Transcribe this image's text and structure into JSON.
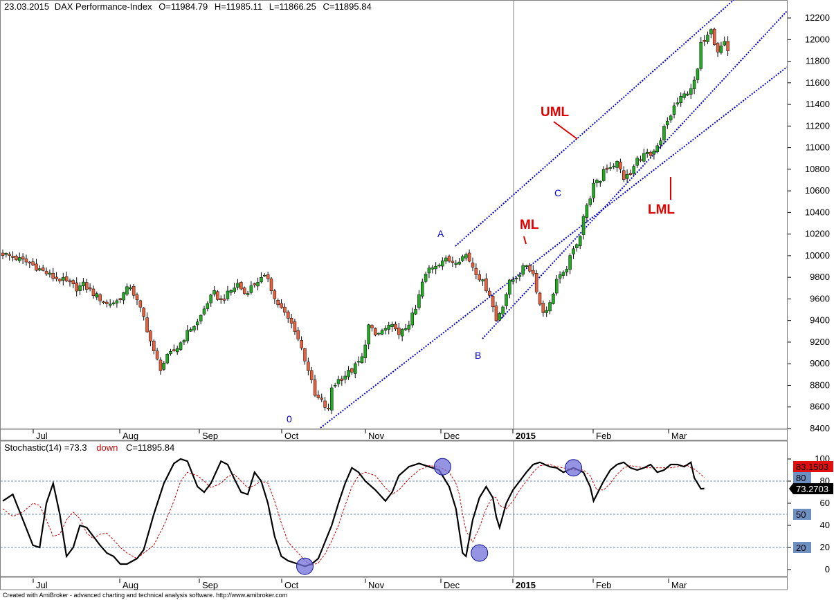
{
  "header": {
    "date": "23.03.2015",
    "instrument": "DAX Performance-Index",
    "open": "O=11984.79",
    "high": "H=11985.11",
    "low": "L=11866.25",
    "close": "C=11895.84"
  },
  "stoch_header": {
    "label": "Stochastic(14) =73.3",
    "signal": "down",
    "close": "C=11895.84"
  },
  "footer": "Created with AmiBroker - advanced charting and technical analysis software. http://www.amibroker.com",
  "colors": {
    "up_candle": "#22aa22",
    "down_candle": "#e8603c",
    "channel": "#0000cc",
    "annotation": "#e00000",
    "stoch_k": "#000000",
    "stoch_d": "#cc0000",
    "marker": "#7070d8"
  },
  "chart_data": [
    {
      "type": "candlestick",
      "title": "DAX Performance-Index",
      "ylim": [
        8400,
        12300
      ],
      "y_ticks": [
        "8400",
        "8600",
        "8800",
        "9000",
        "9200",
        "9400",
        "9600",
        "9800",
        "10000",
        "10200",
        "10400",
        "10600",
        "10800",
        "11000",
        "11200",
        "11400",
        "11600",
        "11800",
        "12000",
        "12200"
      ],
      "x_labels": [
        "Jul",
        "Aug",
        "Sep",
        "Oct",
        "Nov",
        "Dec",
        "2015",
        "Feb",
        "Mar"
      ],
      "close_path": [
        [
          0,
          10020
        ],
        [
          8,
          9930
        ],
        [
          15,
          9800
        ],
        [
          18,
          9770
        ],
        [
          22,
          9700
        ],
        [
          24,
          9730
        ],
        [
          27,
          9650
        ],
        [
          31,
          9550
        ],
        [
          34,
          9580
        ],
        [
          38,
          9720
        ],
        [
          42,
          9430
        ],
        [
          45,
          9100
        ],
        [
          47,
          8960
        ],
        [
          49,
          9060
        ],
        [
          52,
          9150
        ],
        [
          56,
          9330
        ],
        [
          58,
          9380
        ],
        [
          61,
          9570
        ],
        [
          63,
          9650
        ],
        [
          65,
          9580
        ],
        [
          70,
          9740
        ],
        [
          72,
          9650
        ],
        [
          76,
          9770
        ],
        [
          79,
          9800
        ],
        [
          81,
          9600
        ],
        [
          84,
          9460
        ],
        [
          87,
          9320
        ],
        [
          89,
          9140
        ],
        [
          91,
          8950
        ],
        [
          93,
          8700
        ],
        [
          95,
          8650
        ],
        [
          97,
          8560
        ],
        [
          98,
          8780
        ],
        [
          100,
          8850
        ],
        [
          104,
          8940
        ],
        [
          107,
          9050
        ],
        [
          109,
          9350
        ],
        [
          111,
          9260
        ],
        [
          114,
          9320
        ],
        [
          117,
          9350
        ],
        [
          118,
          9250
        ],
        [
          121,
          9380
        ],
        [
          123,
          9500
        ],
        [
          125,
          9750
        ],
        [
          127,
          9880
        ],
        [
          131,
          9960
        ],
        [
          134,
          9950
        ],
        [
          136,
          9970
        ],
        [
          138,
          10010
        ],
        [
          141,
          9850
        ],
        [
          145,
          9650
        ],
        [
          147,
          9400
        ],
        [
          149,
          9550
        ],
        [
          151,
          9750
        ],
        [
          154,
          9840
        ],
        [
          156,
          9920
        ],
        [
          158,
          9830
        ],
        [
          160,
          9550
        ],
        [
          161,
          9480
        ],
        [
          163,
          9550
        ],
        [
          165,
          9780
        ],
        [
          167,
          9820
        ],
        [
          170,
          10050
        ],
        [
          172,
          10200
        ],
        [
          173,
          10370
        ],
        [
          174,
          10450
        ],
        [
          176,
          10650
        ],
        [
          178,
          10700
        ],
        [
          179,
          10800
        ],
        [
          183,
          10860
        ],
        [
          185,
          10720
        ],
        [
          187,
          10750
        ],
        [
          189,
          10890
        ],
        [
          192,
          10950
        ],
        [
          193,
          10900
        ],
        [
          196,
          11050
        ],
        [
          197,
          11180
        ],
        [
          199,
          11300
        ],
        [
          200,
          11380
        ],
        [
          202,
          11450
        ],
        [
          204,
          11520
        ],
        [
          206,
          11600
        ],
        [
          207,
          11720
        ],
        [
          208,
          11950
        ],
        [
          211,
          12120
        ],
        [
          212,
          11980
        ],
        [
          213,
          11900
        ],
        [
          215,
          11980
        ],
        [
          216,
          11895.84
        ]
      ]
    },
    {
      "type": "line",
      "title": "Stochastic(14)",
      "ylim": [
        0,
        100
      ],
      "y_ticks": [
        "0",
        "20",
        "40",
        "60",
        "80",
        "100"
      ],
      "reference_lines": [
        20,
        50,
        80
      ],
      "series": [
        {
          "name": "Stochastic(14)",
          "values": [
            [
              0,
              62
            ],
            [
              3,
              68
            ],
            [
              6,
              45
            ],
            [
              9,
              22
            ],
            [
              11,
              20
            ],
            [
              13,
              60
            ],
            [
              15,
              78
            ],
            [
              17,
              50
            ],
            [
              19,
              12
            ],
            [
              21,
              20
            ],
            [
              23,
              40
            ],
            [
              25,
              38
            ],
            [
              27,
              30
            ],
            [
              29,
              22
            ],
            [
              31,
              15
            ],
            [
              33,
              12
            ],
            [
              35,
              5
            ],
            [
              37,
              5
            ],
            [
              40,
              10
            ],
            [
              42,
              18
            ],
            [
              45,
              50
            ],
            [
              48,
              78
            ],
            [
              51,
              96
            ],
            [
              53,
              100
            ],
            [
              55,
              98
            ],
            [
              58,
              75
            ],
            [
              60,
              70
            ],
            [
              62,
              78
            ],
            [
              65,
              98
            ],
            [
              67,
              95
            ],
            [
              69,
              82
            ],
            [
              71,
              70
            ],
            [
              73,
              68
            ],
            [
              75,
              88
            ],
            [
              77,
              80
            ],
            [
              79,
              60
            ],
            [
              81,
              30
            ],
            [
              83,
              12
            ],
            [
              85,
              8
            ],
            [
              88,
              5
            ],
            [
              90,
              3
            ],
            [
              92,
              5
            ],
            [
              94,
              10
            ],
            [
              96,
              25
            ],
            [
              98,
              40
            ],
            [
              100,
              60
            ],
            [
              102,
              78
            ],
            [
              104,
              92
            ],
            [
              106,
              88
            ],
            [
              108,
              80
            ],
            [
              111,
              72
            ],
            [
              114,
              62
            ],
            [
              116,
              70
            ],
            [
              118,
              85
            ],
            [
              121,
              93
            ],
            [
              124,
              96
            ],
            [
              127,
              93
            ],
            [
              130,
              90
            ],
            [
              133,
              75
            ],
            [
              135,
              55
            ],
            [
              136,
              35
            ],
            [
              137,
              15
            ],
            [
              138,
              12
            ],
            [
              140,
              45
            ],
            [
              142,
              65
            ],
            [
              144,
              75
            ],
            [
              146,
              65
            ],
            [
              147,
              48
            ],
            [
              148,
              38
            ],
            [
              150,
              60
            ],
            [
              152,
              72
            ],
            [
              154,
              80
            ],
            [
              156,
              88
            ],
            [
              158,
              95
            ],
            [
              160,
              97
            ],
            [
              163,
              93
            ],
            [
              165,
              92
            ],
            [
              167,
              88
            ],
            [
              170,
              92
            ],
            [
              173,
              88
            ],
            [
              175,
              75
            ],
            [
              176,
              62
            ],
            [
              177,
              68
            ],
            [
              179,
              80
            ],
            [
              181,
              90
            ],
            [
              183,
              95
            ],
            [
              185,
              97
            ],
            [
              187,
              92
            ],
            [
              189,
              90
            ],
            [
              191,
              92
            ],
            [
              193,
              95
            ],
            [
              195,
              88
            ],
            [
              197,
              90
            ],
            [
              199,
              95
            ],
            [
              201,
              95
            ],
            [
              203,
              93
            ],
            [
              204,
              95
            ],
            [
              205,
              97
            ],
            [
              206,
              83
            ],
            [
              208,
              73
            ],
            [
              209,
              73.3
            ]
          ]
        },
        {
          "name": "83.1503",
          "values": [
            [
              0,
              55
            ],
            [
              3,
              48
            ],
            [
              6,
              52
            ],
            [
              9,
              60
            ],
            [
              11,
              58
            ],
            [
              13,
              45
            ],
            [
              15,
              30
            ],
            [
              17,
              32
            ],
            [
              19,
              45
            ],
            [
              21,
              52
            ],
            [
              23,
              46
            ],
            [
              25,
              33
            ],
            [
              27,
              28
            ],
            [
              29,
              32
            ],
            [
              31,
              33
            ],
            [
              33,
              27
            ],
            [
              35,
              20
            ],
            [
              37,
              15
            ],
            [
              40,
              10
            ],
            [
              42,
              15
            ],
            [
              45,
              22
            ],
            [
              48,
              40
            ],
            [
              51,
              62
            ],
            [
              53,
              80
            ],
            [
              55,
              88
            ],
            [
              58,
              85
            ],
            [
              60,
              80
            ],
            [
              62,
              74
            ],
            [
              65,
              78
            ],
            [
              67,
              84
            ],
            [
              69,
              86
            ],
            [
              71,
              80
            ],
            [
              73,
              74
            ],
            [
              75,
              76
            ],
            [
              77,
              80
            ],
            [
              79,
              78
            ],
            [
              81,
              62
            ],
            [
              83,
              42
            ],
            [
              85,
              25
            ],
            [
              88,
              15
            ],
            [
              90,
              8
            ],
            [
              92,
              4
            ],
            [
              94,
              6
            ],
            [
              96,
              14
            ],
            [
              98,
              26
            ],
            [
              100,
              40
            ],
            [
              102,
              58
            ],
            [
              104,
              75
            ],
            [
              106,
              85
            ],
            [
              108,
              88
            ],
            [
              111,
              85
            ],
            [
              114,
              74
            ],
            [
              116,
              68
            ],
            [
              118,
              72
            ],
            [
              121,
              82
            ],
            [
              124,
              90
            ],
            [
              127,
              94
            ],
            [
              130,
              93
            ],
            [
              133,
              88
            ],
            [
              135,
              78
            ],
            [
              136,
              68
            ],
            [
              137,
              50
            ],
            [
              138,
              35
            ],
            [
              140,
              25
            ],
            [
              142,
              38
            ],
            [
              144,
              55
            ],
            [
              146,
              66
            ],
            [
              147,
              65
            ],
            [
              148,
              58
            ],
            [
              150,
              55
            ],
            [
              152,
              62
            ],
            [
              154,
              72
            ],
            [
              156,
              80
            ],
            [
              158,
              88
            ],
            [
              160,
              94
            ],
            [
              163,
              95
            ],
            [
              165,
              93
            ],
            [
              167,
              92
            ],
            [
              170,
              90
            ],
            [
              173,
              90
            ],
            [
              175,
              85
            ],
            [
              176,
              78
            ],
            [
              177,
              72
            ],
            [
              179,
              72
            ],
            [
              181,
              78
            ],
            [
              183,
              86
            ],
            [
              185,
              92
            ],
            [
              187,
              94
            ],
            [
              189,
              93
            ],
            [
              191,
              92
            ],
            [
              193,
              92
            ],
            [
              195,
              92
            ],
            [
              197,
              92
            ],
            [
              199,
              92
            ],
            [
              201,
              93
            ],
            [
              203,
              94
            ],
            [
              204,
              94
            ],
            [
              205,
              92
            ],
            [
              206,
              91
            ],
            [
              208,
              86
            ],
            [
              209,
              83.1503
            ]
          ]
        }
      ],
      "value_labels": [
        "83.1503",
        "80",
        "73.2703",
        "50",
        "20"
      ]
    }
  ],
  "annotations": {
    "uml": "UML",
    "ml": "ML",
    "lml": "LML",
    "points": [
      "A",
      "B",
      "C",
      "0"
    ]
  }
}
